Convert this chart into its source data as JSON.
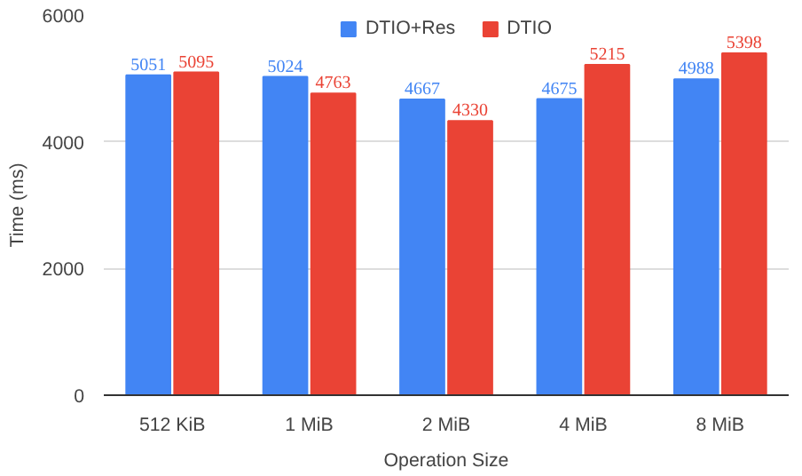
{
  "chart_data": {
    "type": "bar",
    "xlabel": "Operation Size",
    "ylabel": "Time (ms)",
    "categories": [
      "512 KiB",
      "1 MiB",
      "2 MiB",
      "4 MiB",
      "8 MiB"
    ],
    "series": [
      {
        "name": "DTIO+Res",
        "color": "#4285f4",
        "values": [
          5051,
          5024,
          4667,
          4675,
          4988
        ]
      },
      {
        "name": "DTIO",
        "color": "#ea4335",
        "values": [
          5095,
          4763,
          4330,
          5215,
          5398
        ]
      }
    ],
    "ylim": [
      0,
      6000
    ],
    "yticks": [
      0,
      2000,
      4000,
      6000
    ],
    "grid": "y",
    "legend": "top",
    "data_labels": true
  }
}
